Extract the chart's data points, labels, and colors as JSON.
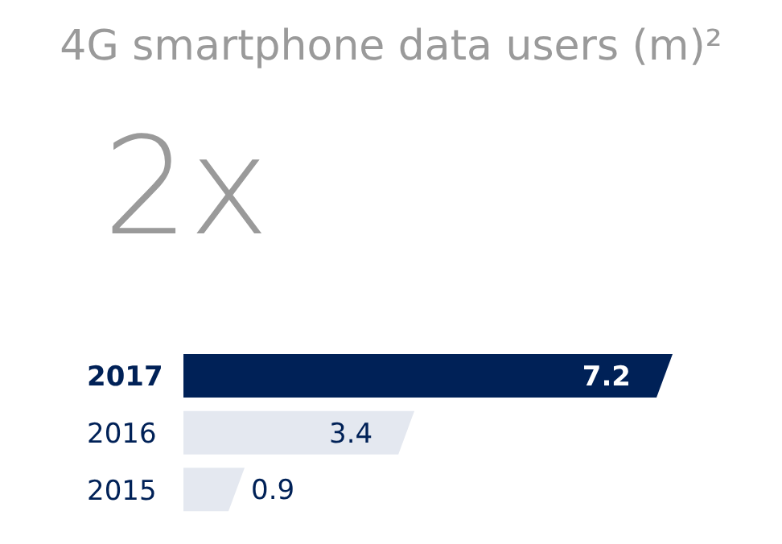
{
  "chart_data": {
    "type": "bar",
    "orientation": "horizontal",
    "title": "4G smartphone data users (m)²",
    "annotations": [
      "2x"
    ],
    "categories": [
      "2017",
      "2016",
      "2015"
    ],
    "values": [
      7.2,
      3.4,
      0.9
    ],
    "colors": [
      "#002157",
      "#e4e8f0",
      "#e4e8f0"
    ],
    "data_labels": true
  }
}
